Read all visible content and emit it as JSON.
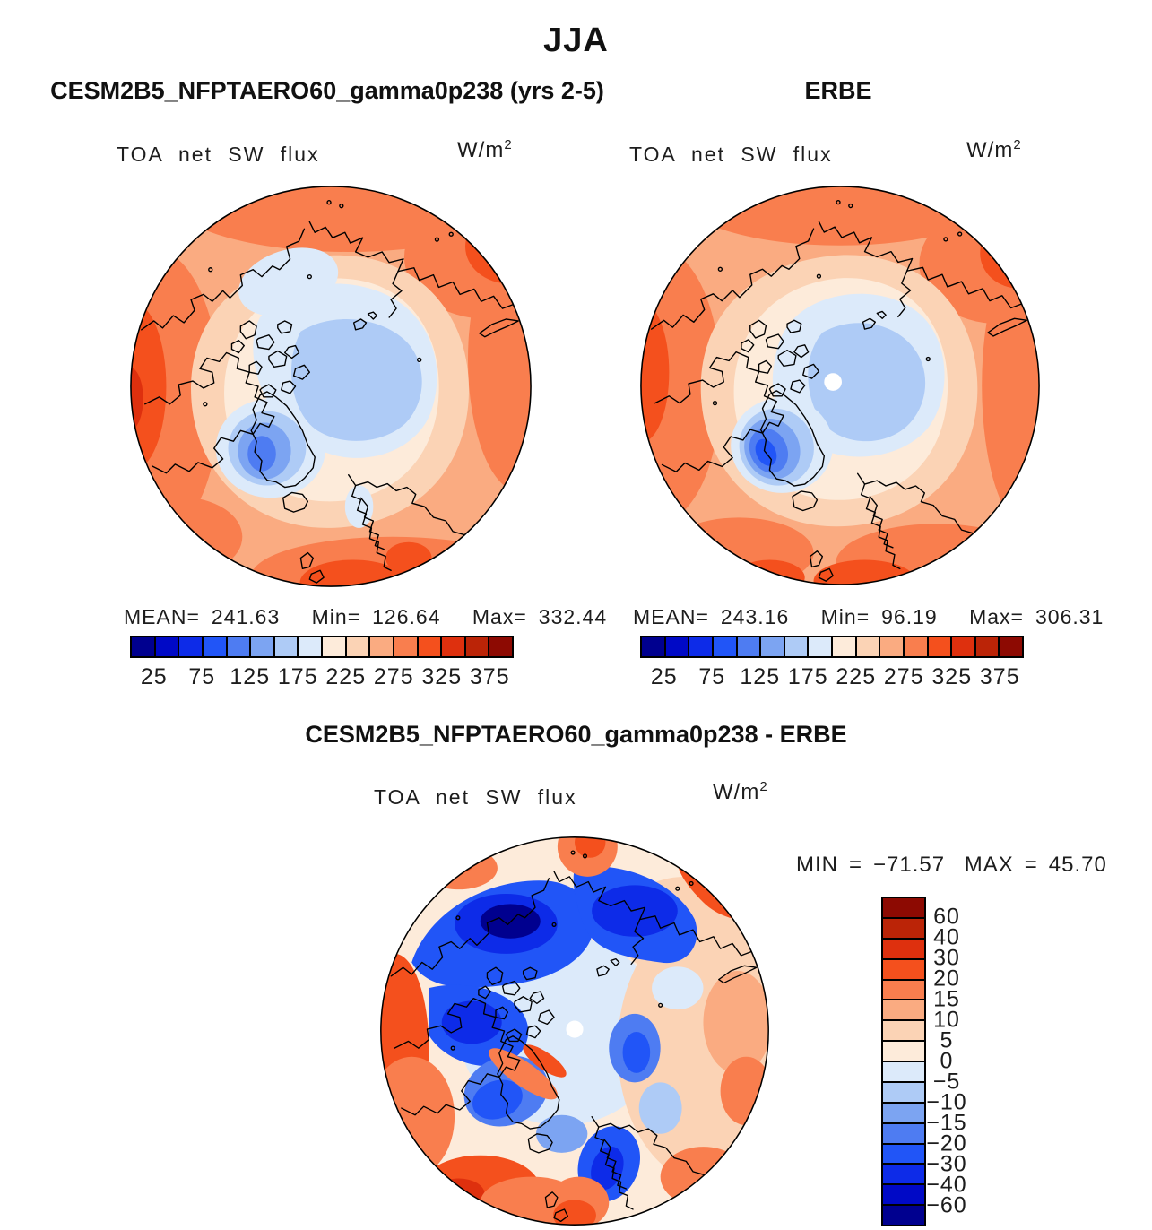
{
  "figure": {
    "season_title": "JJA"
  },
  "panels": {
    "model": {
      "title": "CESM2B5_NFPTAERO60_gamma0p238 (yrs 2-5)",
      "field_label": "TOA net SW flux",
      "units": "W/m",
      "units_exp": "2",
      "stats": {
        "mean_label": "MEAN=",
        "mean": "241.63",
        "min_label": "Min=",
        "min": "126.64",
        "max_label": "Max=",
        "max": "332.44"
      }
    },
    "erbe": {
      "title": "ERBE",
      "field_label": "TOA net SW flux",
      "units": "W/m",
      "units_exp": "2",
      "stats": {
        "mean_label": "MEAN=",
        "mean": "243.16",
        "min_label": "Min=",
        "min": "96.19",
        "max_label": "Max=",
        "max": "306.31"
      }
    },
    "diff": {
      "title": "CESM2B5_NFPTAERO60_gamma0p238 - ERBE",
      "field_label": "TOA net SW flux",
      "units": "W/m",
      "units_exp": "2",
      "stats": {
        "min_label": "MIN",
        "min_eq": "=",
        "min": "−71.57",
        "max_label": "MAX",
        "max_eq": "=",
        "max": "45.70"
      }
    }
  },
  "palette": [
    "#00008F",
    "#0009C6",
    "#0D2BE8",
    "#2155F7",
    "#4E7CF2",
    "#7CA4F2",
    "#AECBF6",
    "#DCEAFA",
    "#FDEBDA",
    "#FBD3B5",
    "#FAAB81",
    "#F97E4E",
    "#F4501D",
    "#DE300E",
    "#BB2407",
    "#8D0A02"
  ],
  "map_ink": {
    "coastline": "#000000",
    "missing_data_dot": "#ffffff"
  },
  "colorbar_abs": {
    "tick_labels": [
      "25",
      "75",
      "125",
      "175",
      "225",
      "275",
      "325",
      "375"
    ]
  },
  "colorbar_diff": {
    "tick_labels": [
      "60",
      "40",
      "30",
      "20",
      "15",
      "10",
      "5",
      "0",
      "−5",
      "−10",
      "−15",
      "−20",
      "−30",
      "−40",
      "−60"
    ]
  },
  "chart_data": [
    {
      "type": "heatmap",
      "subtype": "north-polar-stereographic-filled-contour-map",
      "panel": "model",
      "season": "JJA",
      "title": "CESM2B5_NFPTAERO60_gamma0p238 (yrs 2-5)",
      "variable": "TOA net SW flux",
      "units": "W/m^2",
      "stats": {
        "mean": 241.63,
        "min": 126.64,
        "max": 332.44
      },
      "contour_levels": [
        25,
        50,
        75,
        100,
        125,
        150,
        175,
        200,
        225,
        250,
        275,
        300,
        325,
        350,
        375
      ],
      "colorbar_tick_labels": [
        25,
        75,
        125,
        175,
        225,
        275,
        325,
        375
      ],
      "legend_position": "bottom",
      "palette_low_to_high": [
        "#00008F",
        "#0009C6",
        "#0D2BE8",
        "#2155F7",
        "#4E7CF2",
        "#7CA4F2",
        "#AECBF6",
        "#DCEAFA",
        "#FDEBDA",
        "#FBD3B5",
        "#FAAB81",
        "#F97E4E",
        "#F4501D",
        "#DE300E",
        "#BB2407",
        "#8D0A02"
      ],
      "description": "High values (orange/red, 225-375 W/m^2) over lower-latitude ring; low values (light blue, 150-200 W/m^2) over central Arctic sea ice and Greenland."
    },
    {
      "type": "heatmap",
      "subtype": "north-polar-stereographic-filled-contour-map",
      "panel": "observation",
      "season": "JJA",
      "title": "ERBE",
      "variable": "TOA net SW flux",
      "units": "W/m^2",
      "stats": {
        "mean": 243.16,
        "min": 96.19,
        "max": 306.31
      },
      "contour_levels": [
        25,
        50,
        75,
        100,
        125,
        150,
        175,
        200,
        225,
        250,
        275,
        300,
        325,
        350,
        375
      ],
      "colorbar_tick_labels": [
        25,
        75,
        125,
        175,
        225,
        275,
        325,
        375
      ],
      "legend_position": "bottom",
      "missing_data": "white dot at pole",
      "description": "Similar pattern to model; deeper blue minimum (about 100-125 W/m^2) over Greenland ice sheet; white circle of missing data at the pole."
    },
    {
      "type": "heatmap",
      "subtype": "north-polar-stereographic-filled-contour-map",
      "panel": "difference (model minus observation)",
      "season": "JJA",
      "title": "CESM2B5_NFPTAERO60_gamma0p238 - ERBE",
      "variable": "TOA net SW flux",
      "units": "W/m^2",
      "stats": {
        "min": -71.57,
        "max": 45.7
      },
      "contour_levels": [
        -60,
        -40,
        -30,
        -20,
        -15,
        -10,
        -5,
        0,
        5,
        10,
        15,
        20,
        30,
        40,
        60
      ],
      "legend_position": "right",
      "missing_data": "white dot at pole",
      "description": "Large negative differences (deep blue, below -40 W/m^2) over Siberian shelf seas, Canadian Arctic and Scandinavia; positive differences (red, +20 to +60 W/m^2) around the outer rim, northeast sector and southwest quadrant."
    }
  ]
}
